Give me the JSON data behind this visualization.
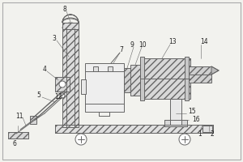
{
  "bg_color": "#f2f2ee",
  "line_color": "#666666",
  "fill_light": "#e8e8e8",
  "fill_white": "#ffffff",
  "figsize": [
    3.0,
    2.0
  ],
  "dpi": 100,
  "border_color": "#999999"
}
